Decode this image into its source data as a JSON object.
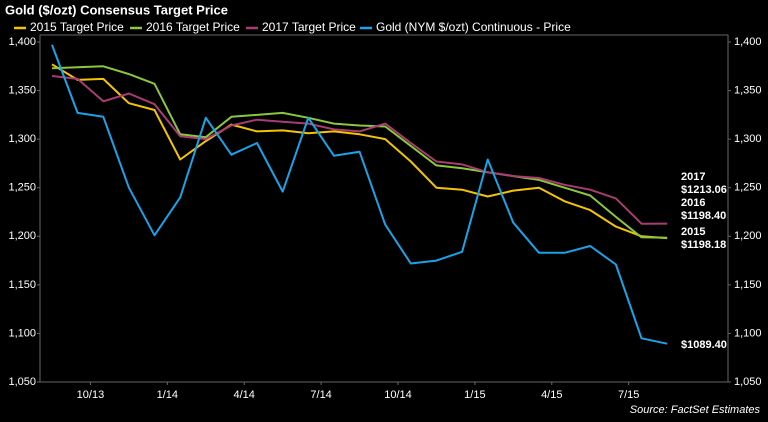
{
  "chart_data": {
    "type": "line",
    "title": "Gold ($/ozt) Consensus Target Price",
    "source": "Source: FactSet Estimates",
    "categories": [
      null,
      "10/13",
      null,
      null,
      "1/14",
      null,
      null,
      "4/14",
      null,
      null,
      "7/14",
      null,
      null,
      "10/14",
      null,
      null,
      "1/15",
      null,
      null,
      "4/15",
      null,
      null,
      "7/15",
      null,
      null
    ],
    "ylim": [
      1050,
      1400
    ],
    "yticks": [
      {
        "value": 1050,
        "label": "1,050"
      },
      {
        "value": 1100,
        "label": "1,100"
      },
      {
        "value": 1150,
        "label": "1,150"
      },
      {
        "value": 1200,
        "label": "1,200"
      },
      {
        "value": 1250,
        "label": "1,250"
      },
      {
        "value": 1300,
        "label": "1,300"
      },
      {
        "value": 1350,
        "label": "1,350"
      },
      {
        "value": 1400,
        "label": "1,400"
      }
    ],
    "y2lim": [
      1050,
      1400
    ],
    "y2ticks": [
      {
        "value": 1050,
        "label": "1,050"
      },
      {
        "value": 1100,
        "label": "1,100"
      },
      {
        "value": 1150,
        "label": "1,150"
      },
      {
        "value": 1200,
        "label": "1,200"
      },
      {
        "value": 1250,
        "label": "1,250"
      },
      {
        "value": 1300,
        "label": "1,300"
      },
      {
        "value": 1350,
        "label": "1,350"
      },
      {
        "value": 1400,
        "label": "1,400"
      }
    ],
    "grid": false,
    "legend": "top",
    "series": [
      {
        "name": "2015 Target Price",
        "color": "#f5c400",
        "label": "2015",
        "values": [
          1377,
          1361,
          1362,
          1337,
          1330,
          1279,
          1298,
          1315,
          1308,
          1309,
          1306,
          1308,
          1305,
          1300,
          1277,
          1250,
          1248,
          1241,
          1247,
          1250,
          1236,
          1227,
          1210,
          1200,
          1198.18
        ],
        "value_labels": [
          null,
          null,
          null,
          null,
          null,
          null,
          null,
          null,
          null,
          null,
          null,
          null,
          null,
          null,
          null,
          null,
          null,
          null,
          null,
          null,
          null,
          null,
          null,
          null,
          "$1198.18"
        ]
      },
      {
        "name": "2016 Target Price",
        "color": "#8cc63f",
        "label": "2016",
        "values": [
          1373,
          1374,
          1375,
          1367,
          1357,
          1305,
          1302,
          1323,
          1325,
          1327,
          1322,
          1316,
          1314,
          1313,
          1293,
          1273,
          1270,
          1266,
          1262,
          1258,
          1250,
          1242,
          1220,
          1199,
          1198.4
        ],
        "value_labels": [
          null,
          null,
          null,
          null,
          null,
          null,
          null,
          null,
          null,
          null,
          null,
          null,
          null,
          null,
          null,
          null,
          null,
          null,
          null,
          null,
          null,
          null,
          null,
          null,
          "$1198.40"
        ]
      },
      {
        "name": "2017 Target Price",
        "color": "#a83d72",
        "label": "2017",
        "values": [
          1365,
          1362,
          1339,
          1347,
          1336,
          1303,
          1300,
          1314,
          1320,
          1318,
          1316,
          1310,
          1308,
          1316,
          1296,
          1277,
          1274,
          1266,
          1262,
          1260,
          1253,
          1248,
          1239,
          1213,
          1213.06
        ],
        "value_labels": [
          null,
          null,
          null,
          null,
          null,
          null,
          null,
          null,
          null,
          null,
          null,
          null,
          null,
          null,
          null,
          null,
          null,
          null,
          null,
          null,
          null,
          null,
          null,
          null,
          "$1213.06"
        ]
      },
      {
        "name": "Gold (NYM $/ozt) Continuous - Price",
        "color": "#1aa3e8",
        "values": [
          1397,
          1327,
          1323,
          1250,
          1201,
          1240,
          1322,
          1284,
          1296,
          1246,
          1322,
          1283,
          1287,
          1212,
          1172,
          1175,
          1184,
          1279,
          1214,
          1183,
          1183,
          1190,
          1171,
          1095,
          1089.4
        ],
        "value_labels": [
          null,
          null,
          null,
          null,
          null,
          null,
          null,
          null,
          null,
          null,
          null,
          null,
          null,
          null,
          null,
          null,
          null,
          null,
          null,
          null,
          null,
          null,
          null,
          null,
          "$1089.40"
        ]
      }
    ]
  }
}
